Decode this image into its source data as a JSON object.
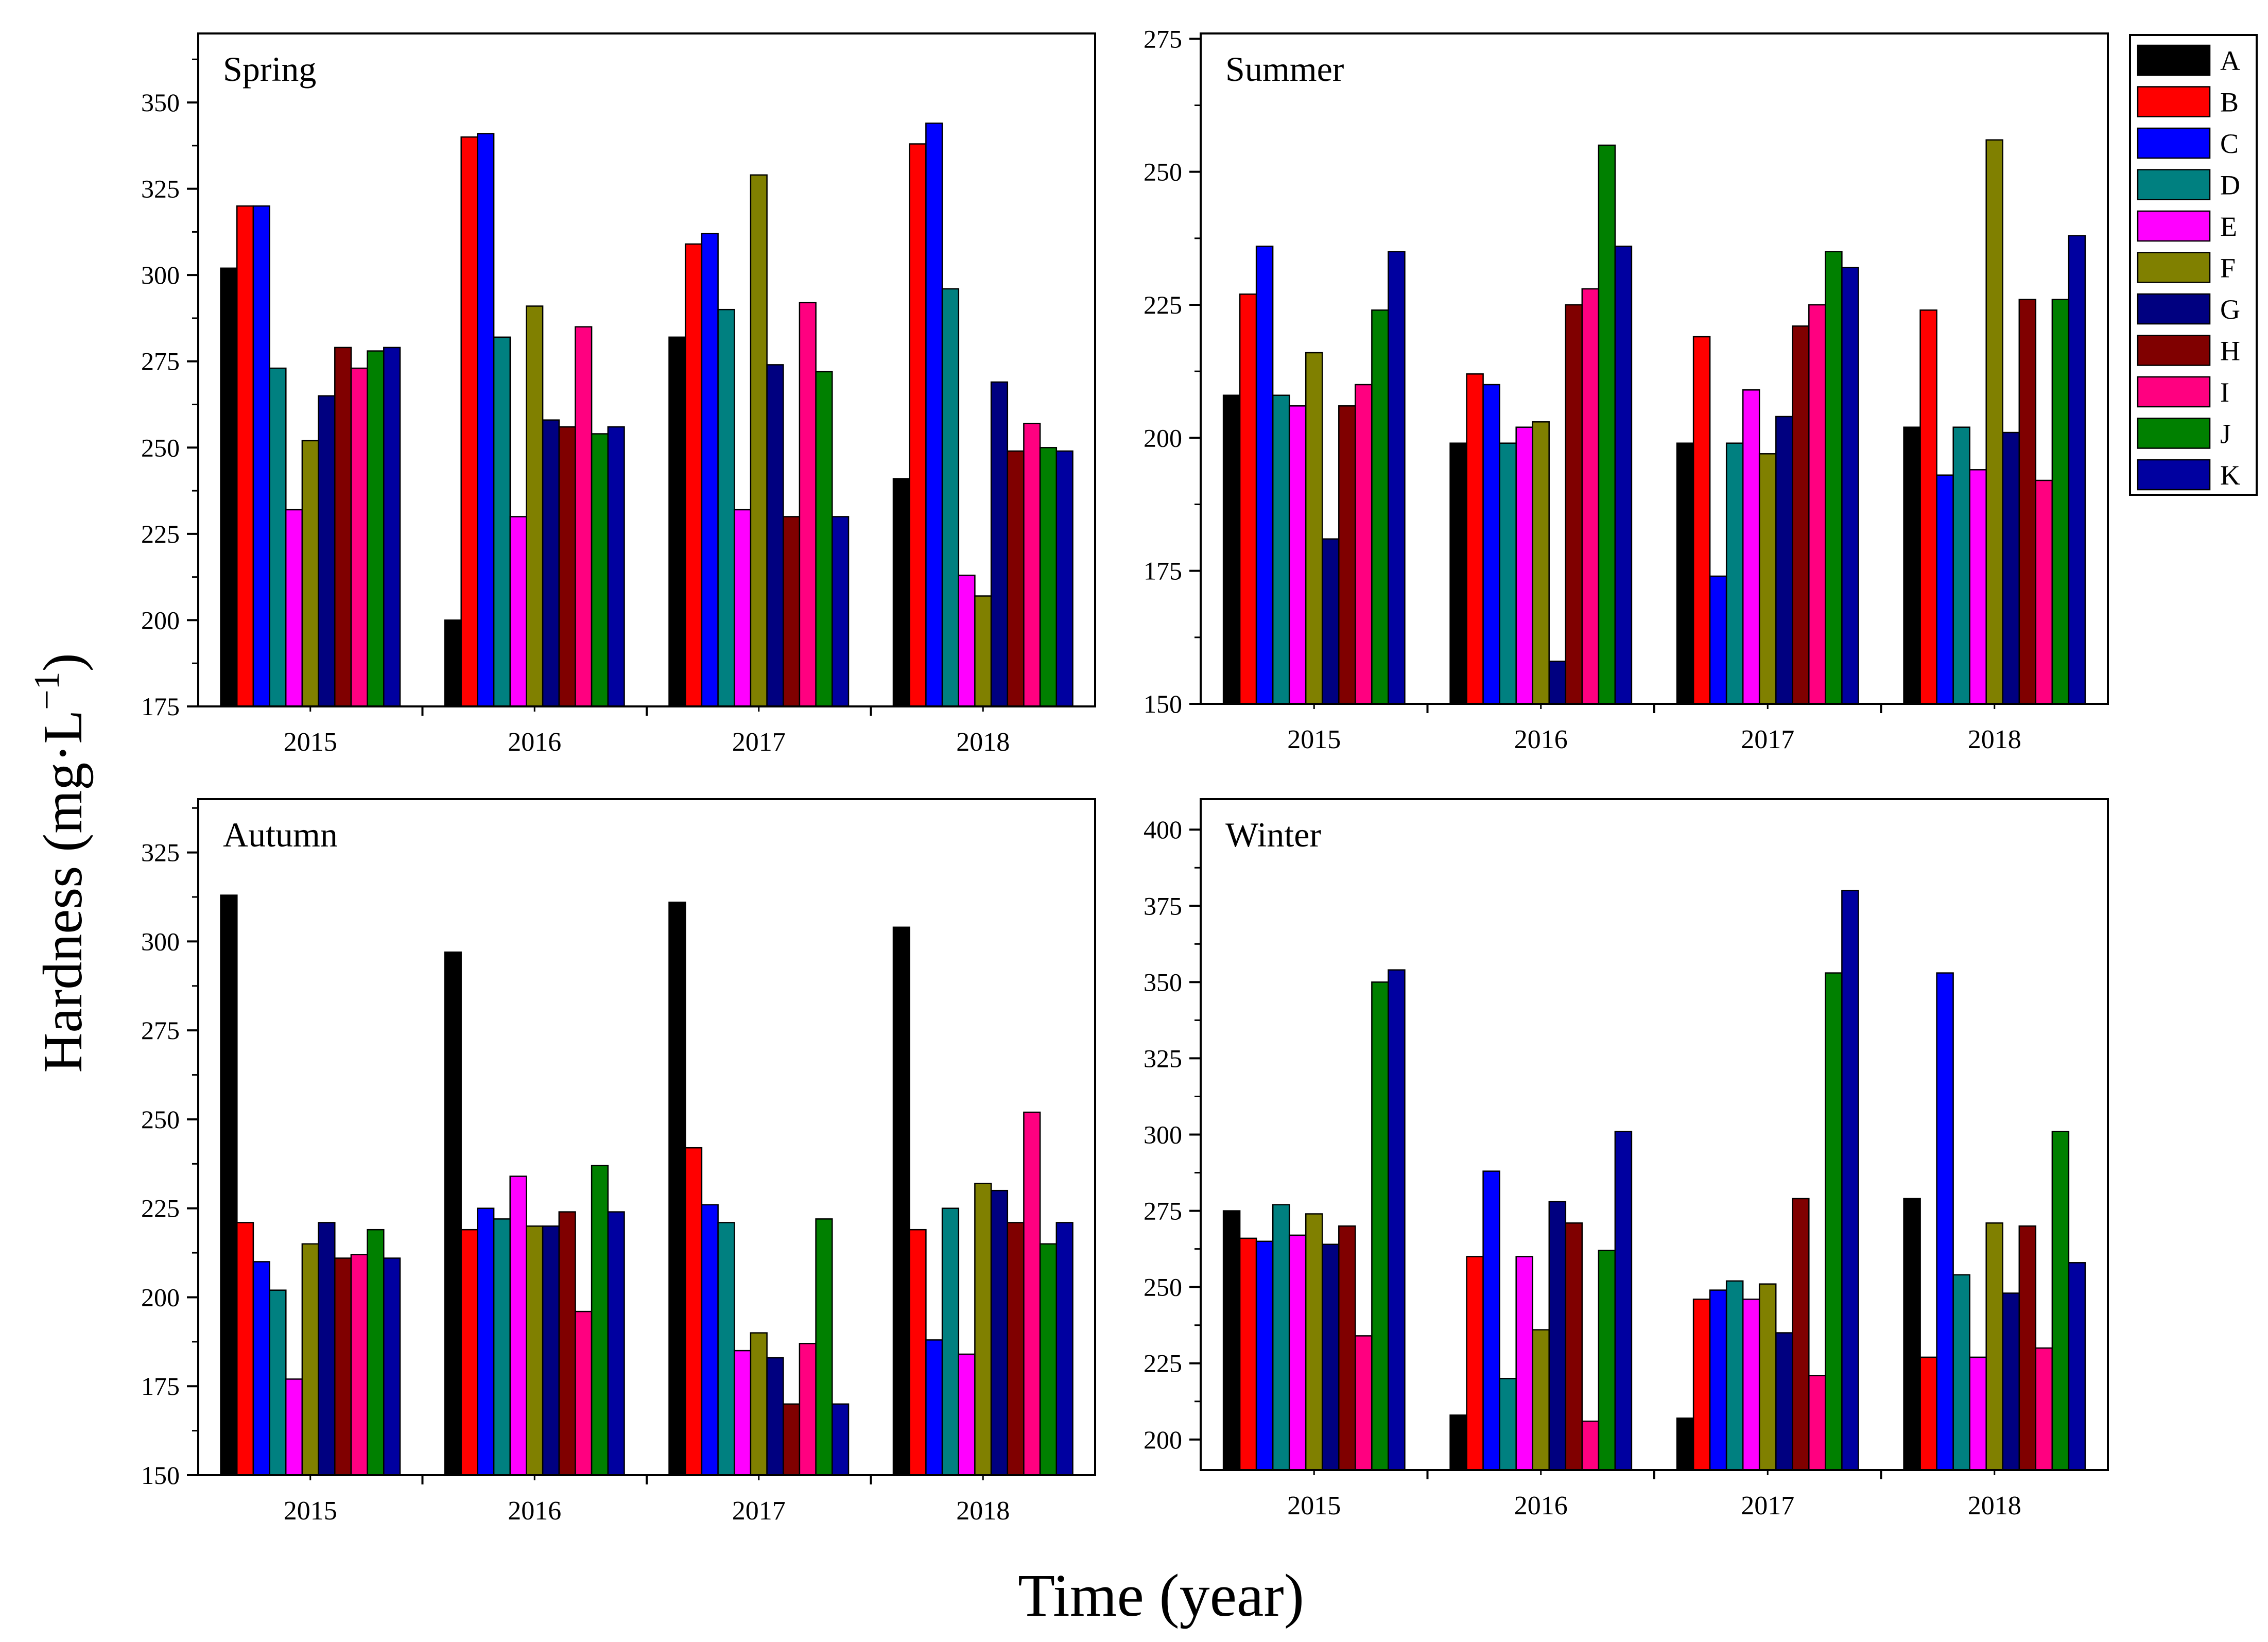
{
  "figure": {
    "ylabel": "Hardness (mg·L",
    "ylabel_sup": "−1",
    "ylabel_close": ")",
    "xlabel": "Time (year)"
  },
  "legend": {
    "entries": [
      {
        "label": "A",
        "color": "#000000"
      },
      {
        "label": "B",
        "color": "#ff0000"
      },
      {
        "label": "C",
        "color": "#0000ff"
      },
      {
        "label": "D",
        "color": "#008080"
      },
      {
        "label": "E",
        "color": "#ff00ff"
      },
      {
        "label": "F",
        "color": "#808000"
      },
      {
        "label": "G",
        "color": "#000080"
      },
      {
        "label": "H",
        "color": "#800000"
      },
      {
        "label": "I",
        "color": "#ff0080"
      },
      {
        "label": "J",
        "color": "#008000"
      },
      {
        "label": "K",
        "color": "#0000a0"
      }
    ]
  },
  "chart_data": [
    {
      "type": "bar",
      "title": "Spring",
      "categories": [
        "2015",
        "2016",
        "2017",
        "2018"
      ],
      "ylim": [
        175,
        370
      ],
      "yticks": [
        175,
        200,
        225,
        250,
        275,
        300,
        325,
        350
      ],
      "series": [
        {
          "name": "A",
          "values": [
            302,
            200,
            282,
            241
          ]
        },
        {
          "name": "B",
          "values": [
            320,
            340,
            309,
            338
          ]
        },
        {
          "name": "C",
          "values": [
            320,
            341,
            312,
            344
          ]
        },
        {
          "name": "D",
          "values": [
            273,
            282,
            290,
            296
          ]
        },
        {
          "name": "E",
          "values": [
            232,
            230,
            232,
            213
          ]
        },
        {
          "name": "F",
          "values": [
            252,
            291,
            329,
            207
          ]
        },
        {
          "name": "G",
          "values": [
            265,
            258,
            274,
            269
          ]
        },
        {
          "name": "H",
          "values": [
            279,
            256,
            230,
            249
          ]
        },
        {
          "name": "I",
          "values": [
            273,
            285,
            292,
            257
          ]
        },
        {
          "name": "J",
          "values": [
            278,
            254,
            272,
            250
          ]
        },
        {
          "name": "K",
          "values": [
            279,
            256,
            230,
            249
          ]
        }
      ]
    },
    {
      "type": "bar",
      "title": "Summer",
      "categories": [
        "2015",
        "2016",
        "2017",
        "2018"
      ],
      "ylim": [
        150,
        276
      ],
      "yticks": [
        150,
        175,
        200,
        225,
        250,
        275
      ],
      "series": [
        {
          "name": "A",
          "values": [
            208,
            199,
            199,
            202
          ]
        },
        {
          "name": "B",
          "values": [
            227,
            212,
            219,
            224
          ]
        },
        {
          "name": "C",
          "values": [
            236,
            210,
            174,
            193
          ]
        },
        {
          "name": "D",
          "values": [
            208,
            199,
            199,
            202
          ]
        },
        {
          "name": "E",
          "values": [
            206,
            202,
            209,
            194
          ]
        },
        {
          "name": "F",
          "values": [
            216,
            203,
            197,
            256
          ]
        },
        {
          "name": "G",
          "values": [
            181,
            158,
            204,
            201
          ]
        },
        {
          "name": "H",
          "values": [
            206,
            225,
            221,
            226
          ]
        },
        {
          "name": "I",
          "values": [
            210,
            228,
            225,
            192
          ]
        },
        {
          "name": "J",
          "values": [
            224,
            255,
            235,
            226
          ]
        },
        {
          "name": "K",
          "values": [
            235,
            236,
            232,
            238
          ]
        }
      ]
    },
    {
      "type": "bar",
      "title": "Autumn",
      "categories": [
        "2015",
        "2016",
        "2017",
        "2018"
      ],
      "ylim": [
        150,
        340
      ],
      "yticks": [
        150,
        175,
        200,
        225,
        250,
        275,
        300,
        325
      ],
      "series": [
        {
          "name": "A",
          "values": [
            313,
            297,
            311,
            304
          ]
        },
        {
          "name": "B",
          "values": [
            221,
            219,
            242,
            219
          ]
        },
        {
          "name": "C",
          "values": [
            210,
            225,
            226,
            188
          ]
        },
        {
          "name": "D",
          "values": [
            202,
            222,
            221,
            225
          ]
        },
        {
          "name": "E",
          "values": [
            177,
            234,
            185,
            184
          ]
        },
        {
          "name": "F",
          "values": [
            215,
            220,
            190,
            232
          ]
        },
        {
          "name": "G",
          "values": [
            221,
            220,
            183,
            230
          ]
        },
        {
          "name": "H",
          "values": [
            211,
            224,
            170,
            221
          ]
        },
        {
          "name": "I",
          "values": [
            212,
            196,
            187,
            252
          ]
        },
        {
          "name": "J",
          "values": [
            219,
            237,
            222,
            215
          ]
        },
        {
          "name": "K",
          "values": [
            211,
            224,
            170,
            221
          ]
        }
      ]
    },
    {
      "type": "bar",
      "title": "Winter",
      "categories": [
        "2015",
        "2016",
        "2017",
        "2018"
      ],
      "ylim": [
        190,
        410
      ],
      "yticks": [
        200,
        225,
        250,
        275,
        300,
        325,
        350,
        375,
        400
      ],
      "series": [
        {
          "name": "A",
          "values": [
            275,
            208,
            207,
            279
          ]
        },
        {
          "name": "B",
          "values": [
            266,
            260,
            246,
            227
          ]
        },
        {
          "name": "C",
          "values": [
            265,
            288,
            249,
            353
          ]
        },
        {
          "name": "D",
          "values": [
            277,
            220,
            252,
            254
          ]
        },
        {
          "name": "E",
          "values": [
            267,
            260,
            246,
            227
          ]
        },
        {
          "name": "F",
          "values": [
            274,
            236,
            251,
            271
          ]
        },
        {
          "name": "G",
          "values": [
            264,
            278,
            235,
            248
          ]
        },
        {
          "name": "H",
          "values": [
            270,
            271,
            279,
            270
          ]
        },
        {
          "name": "I",
          "values": [
            234,
            206,
            221,
            230
          ]
        },
        {
          "name": "J",
          "values": [
            350,
            262,
            353,
            301
          ]
        },
        {
          "name": "K",
          "values": [
            354,
            301,
            380,
            258
          ]
        }
      ]
    }
  ]
}
